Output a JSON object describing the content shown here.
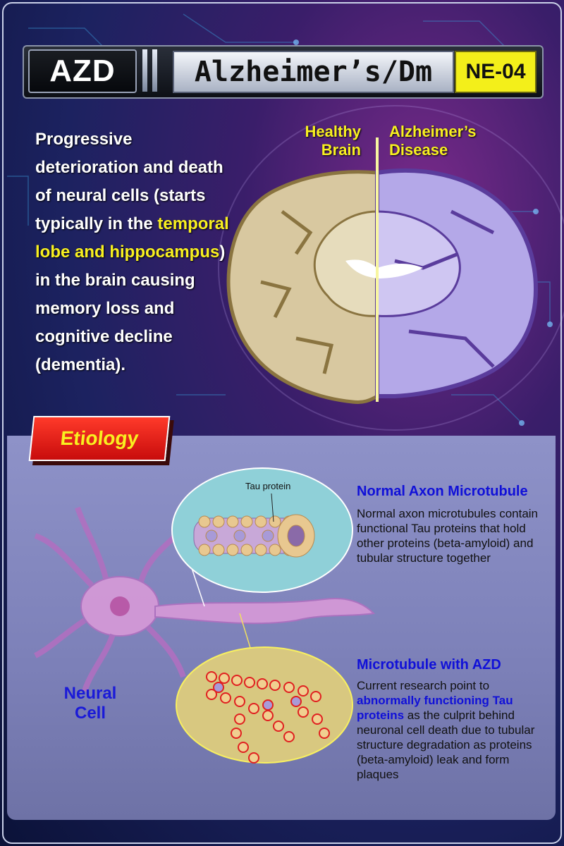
{
  "header": {
    "abbrev": "AZD",
    "name": "Alzheimer’s/Dm",
    "code": "NE-04"
  },
  "description": {
    "part1": "Progressive deterioration and death of neural cells (starts typically in the ",
    "highlight": "temporal lobe and hippocampus",
    "part2": ") in the brain causing memory loss and cognitive decline (dementia)."
  },
  "brain": {
    "healthy_label_1": "Healthy",
    "healthy_label_2": "Brain",
    "alz_label_1": "Alzheimer’s",
    "alz_label_2": "Disease"
  },
  "etiology": {
    "title": "Etiology",
    "tau_label": "Tau protein",
    "normal_title": "Normal Axon Microtubule",
    "normal_body": "Normal axon microtubules contain functional Tau proteins that hold other proteins (beta-amyloid) and tubular structure together",
    "azd_title": "Microtubule with AZD",
    "azd_body_1": "Current research point to ",
    "azd_body_highlight": "abnormally functioning Tau proteins",
    "azd_body_2": " as the culprit behind neuronal cell death due to tubular structure degradation as proteins (beta-amyloid) leak and form plaques",
    "neural_label_1": "Neural",
    "neural_label_2": "Cell"
  },
  "colors": {
    "accent_yellow": "#f8f020",
    "etiology_red": "#e01a14",
    "title_blue": "#1010d8",
    "healthy_tissue": "#d8c8a0",
    "alz_tissue": "#b4a8e8"
  }
}
